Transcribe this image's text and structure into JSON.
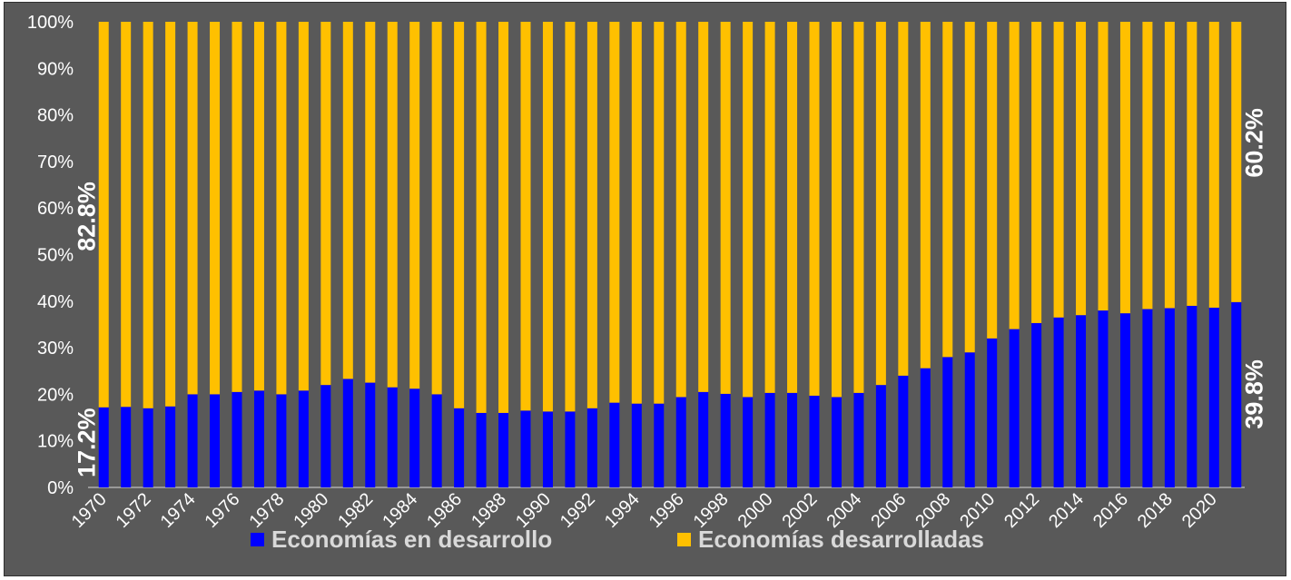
{
  "chart_data": {
    "type": "bar",
    "stacked": true,
    "percent": true,
    "years": [
      1970,
      1971,
      1972,
      1973,
      1974,
      1975,
      1976,
      1977,
      1978,
      1979,
      1980,
      1981,
      1982,
      1983,
      1984,
      1985,
      1986,
      1987,
      1988,
      1989,
      1990,
      1991,
      1992,
      1993,
      1994,
      1995,
      1996,
      1997,
      1998,
      1999,
      2000,
      2001,
      2002,
      2003,
      2004,
      2005,
      2006,
      2007,
      2008,
      2009,
      2010,
      2011,
      2012,
      2013,
      2014,
      2015,
      2016,
      2017,
      2018,
      2019,
      2020,
      2021
    ],
    "x_tick_labels": [
      "1970",
      "1972",
      "1974",
      "1976",
      "1978",
      "1980",
      "1982",
      "1984",
      "1986",
      "1988",
      "1990",
      "1992",
      "1994",
      "1996",
      "1998",
      "2000",
      "2002",
      "2004",
      "2006",
      "2008",
      "2010",
      "2012",
      "2014",
      "2016",
      "2018",
      "2020"
    ],
    "y_tick_labels": [
      "0%",
      "10%",
      "20%",
      "30%",
      "40%",
      "50%",
      "60%",
      "70%",
      "80%",
      "90%",
      "100%"
    ],
    "ylim": [
      0,
      100
    ],
    "grid": false,
    "legend_position": "bottom",
    "series": [
      {
        "name": "Economías en desarrollo",
        "color": "#0000FF",
        "values": [
          17.2,
          17.3,
          17.0,
          17.4,
          20.0,
          20.0,
          20.5,
          20.8,
          20.0,
          20.8,
          22.0,
          23.3,
          22.5,
          21.5,
          21.2,
          20.0,
          17.0,
          16.0,
          16.0,
          16.5,
          16.3,
          16.3,
          17.0,
          18.2,
          18.0,
          18.0,
          19.4,
          20.5,
          20.1,
          19.4,
          20.3,
          20.3,
          19.7,
          19.4,
          20.3,
          22.0,
          24.0,
          25.6,
          28.0,
          29.0,
          32.0,
          34.0,
          35.3,
          36.5,
          37.0,
          38.0,
          37.4,
          38.3,
          38.5,
          39.0,
          38.6,
          39.8
        ]
      },
      {
        "name": "Economías desarrolladas",
        "color": "#FFC000",
        "values": [
          82.8,
          82.7,
          83.0,
          82.6,
          80.0,
          80.0,
          79.5,
          79.2,
          80.0,
          79.2,
          78.0,
          76.7,
          77.5,
          78.5,
          78.8,
          80.0,
          83.0,
          84.0,
          84.0,
          83.5,
          83.7,
          83.7,
          83.0,
          81.8,
          82.0,
          82.0,
          80.6,
          79.5,
          79.9,
          80.6,
          79.7,
          79.7,
          80.3,
          80.6,
          79.7,
          78.0,
          76.0,
          74.4,
          72.0,
          71.0,
          68.0,
          66.0,
          64.7,
          63.5,
          63.0,
          62.0,
          62.6,
          61.7,
          61.5,
          61.0,
          61.4,
          60.2
        ]
      }
    ],
    "annotations": {
      "first_bottom": "17.2%",
      "first_top": "82.8%",
      "last_bottom": "39.8%",
      "last_top": "60.2%"
    }
  }
}
